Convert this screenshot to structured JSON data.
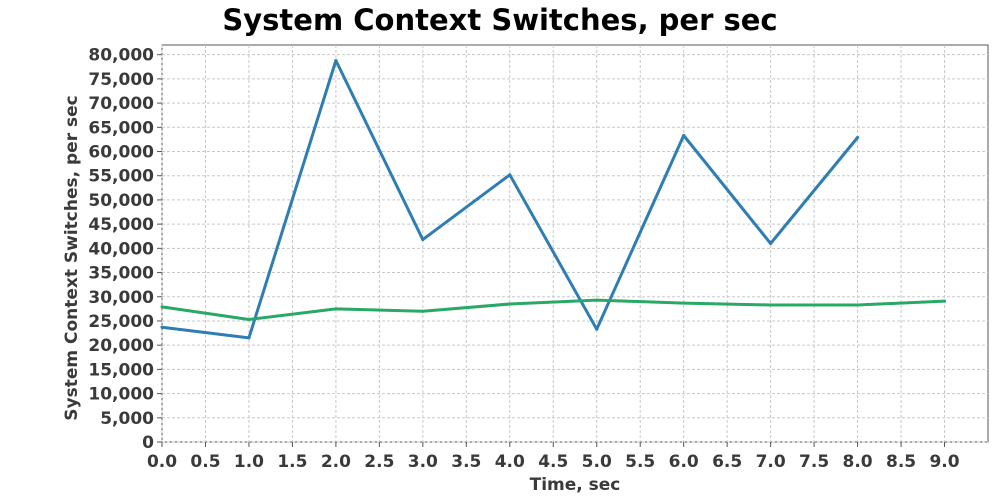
{
  "chart_data": {
    "type": "line",
    "title": "System Context Switches, per sec",
    "xlabel": "Time, sec",
    "ylabel": "System Context Switches, per sec",
    "xlim": [
      0,
      9.5
    ],
    "ylim": [
      0,
      82000
    ],
    "x_ticks": [
      "0.0",
      "0.5",
      "1.0",
      "1.5",
      "2.0",
      "2.5",
      "3.0",
      "3.5",
      "4.0",
      "4.5",
      "5.0",
      "5.5",
      "6.0",
      "6.5",
      "7.0",
      "7.5",
      "8.0",
      "8.5",
      "9.0"
    ],
    "y_ticks": [
      "0",
      "5,000",
      "10,000",
      "15,000",
      "20,000",
      "25,000",
      "30,000",
      "35,000",
      "40,000",
      "45,000",
      "50,000",
      "55,000",
      "60,000",
      "65,000",
      "70,000",
      "75,000",
      "80,000"
    ],
    "grid": true,
    "series": [
      {
        "color": "#2e7db3",
        "x": [
          0,
          1,
          2,
          3,
          4,
          5,
          6,
          7,
          8
        ],
        "values": [
          23700,
          21500,
          78800,
          41800,
          55200,
          23300,
          63300,
          41000,
          62900
        ]
      },
      {
        "color": "#2aa866",
        "x": [
          0,
          1,
          2,
          3,
          4,
          5,
          6,
          7,
          8,
          9
        ],
        "values": [
          27900,
          25300,
          27500,
          27000,
          28500,
          29300,
          28700,
          28300,
          28300,
          29100
        ]
      }
    ]
  }
}
